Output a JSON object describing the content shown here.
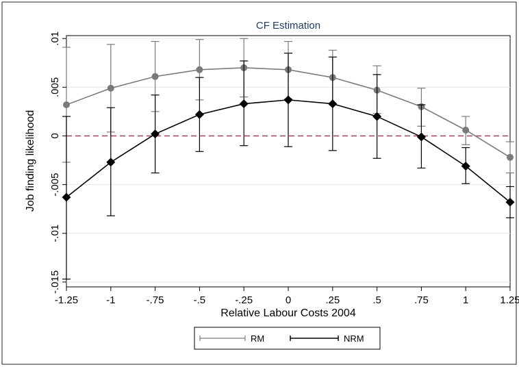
{
  "chart_data": {
    "type": "line",
    "title": "CF Estimation",
    "xlabel": "Relative Labour Costs 2004",
    "ylabel": "Job finding likelihood",
    "x": [
      -1.25,
      -1,
      -0.75,
      -0.5,
      -0.25,
      0,
      0.25,
      0.5,
      0.75,
      1,
      1.25
    ],
    "xtick_labels": [
      "-1.25",
      "-1",
      "-.75",
      "-.5",
      "-.25",
      "0",
      ".25",
      ".5",
      ".75",
      "1",
      "1.25"
    ],
    "yticks": [
      0.01,
      0.005,
      0,
      -0.005,
      -0.01,
      -0.015
    ],
    "ytick_labels": [
      ".01",
      ".005",
      "0",
      "-.005",
      "-.01",
      "-.015"
    ],
    "xlim": [
      -1.25,
      1.25
    ],
    "ylim": [
      -0.0155,
      0.0103
    ],
    "reference_line": {
      "y": 0,
      "style": "dashed",
      "color": "#a04060"
    },
    "grid": "horizontal",
    "legend_position": "bottom",
    "series": [
      {
        "name": "RM",
        "color": "#7a7a7a",
        "marker": "circle",
        "values": [
          0.0032,
          0.0049,
          0.0061,
          0.0068,
          0.007,
          0.0068,
          0.006,
          0.0047,
          0.003,
          0.0006,
          -0.0022
        ],
        "ci_low": [
          -0.0027,
          0.0004,
          0.0025,
          0.0037,
          0.004,
          0.0038,
          0.0032,
          0.0023,
          0.001,
          -0.0009,
          -0.0038
        ],
        "ci_high": [
          0.0091,
          0.0094,
          0.0097,
          0.0099,
          0.01,
          0.0097,
          0.0088,
          0.0072,
          0.0049,
          0.002,
          -0.0006
        ]
      },
      {
        "name": "NRM",
        "color": "#000000",
        "marker": "diamond",
        "values": [
          -0.0063,
          -0.0027,
          0.0002,
          0.0022,
          0.0033,
          0.0037,
          0.0033,
          0.002,
          -0.0001,
          -0.0031,
          -0.0068
        ],
        "ci_low": [
          -0.0147,
          -0.0082,
          -0.0038,
          -0.0016,
          -0.001,
          -0.0011,
          -0.0015,
          -0.0023,
          -0.0033,
          -0.0049,
          -0.0084
        ],
        "ci_high": [
          0.002,
          0.0029,
          0.0042,
          0.006,
          0.0077,
          0.0085,
          0.0081,
          0.0063,
          0.0032,
          -0.0012,
          -0.0052
        ]
      }
    ]
  }
}
